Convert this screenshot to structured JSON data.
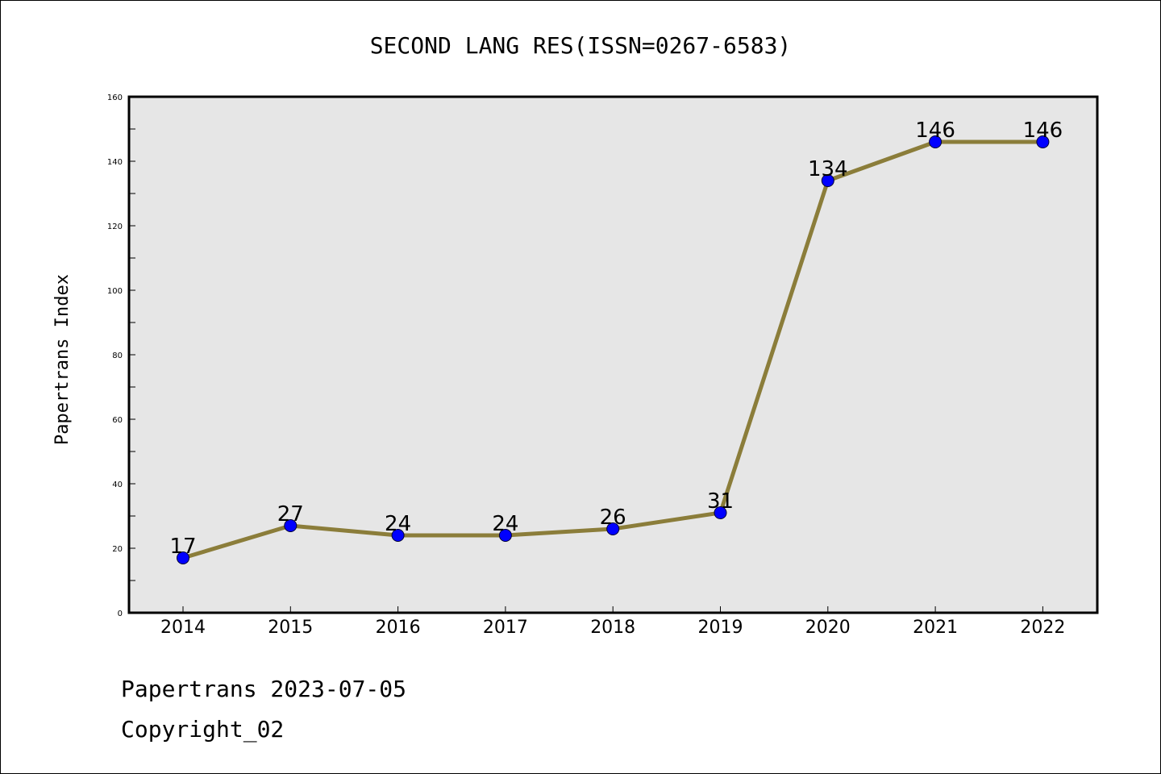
{
  "chart_data": {
    "type": "line",
    "title": "SECOND LANG RES(ISSN=0267-6583)",
    "ylabel": "Papertrans Index",
    "xlabel": "",
    "categories": [
      "2014",
      "2015",
      "2016",
      "2017",
      "2018",
      "2019",
      "2020",
      "2021",
      "2022"
    ],
    "values": [
      17,
      27,
      24,
      24,
      26,
      31,
      134,
      146,
      146
    ],
    "ylim": [
      0,
      160
    ],
    "yticks": [
      0,
      20,
      40,
      60,
      80,
      100,
      120,
      140,
      160
    ],
    "line_color": "#8b7d3a",
    "marker_color": "#0000ff",
    "plot_background": "#e6e6e6",
    "grid": false
  },
  "footer": {
    "line1": "Papertrans 2023-07-05",
    "line2": "Copyright_02"
  }
}
